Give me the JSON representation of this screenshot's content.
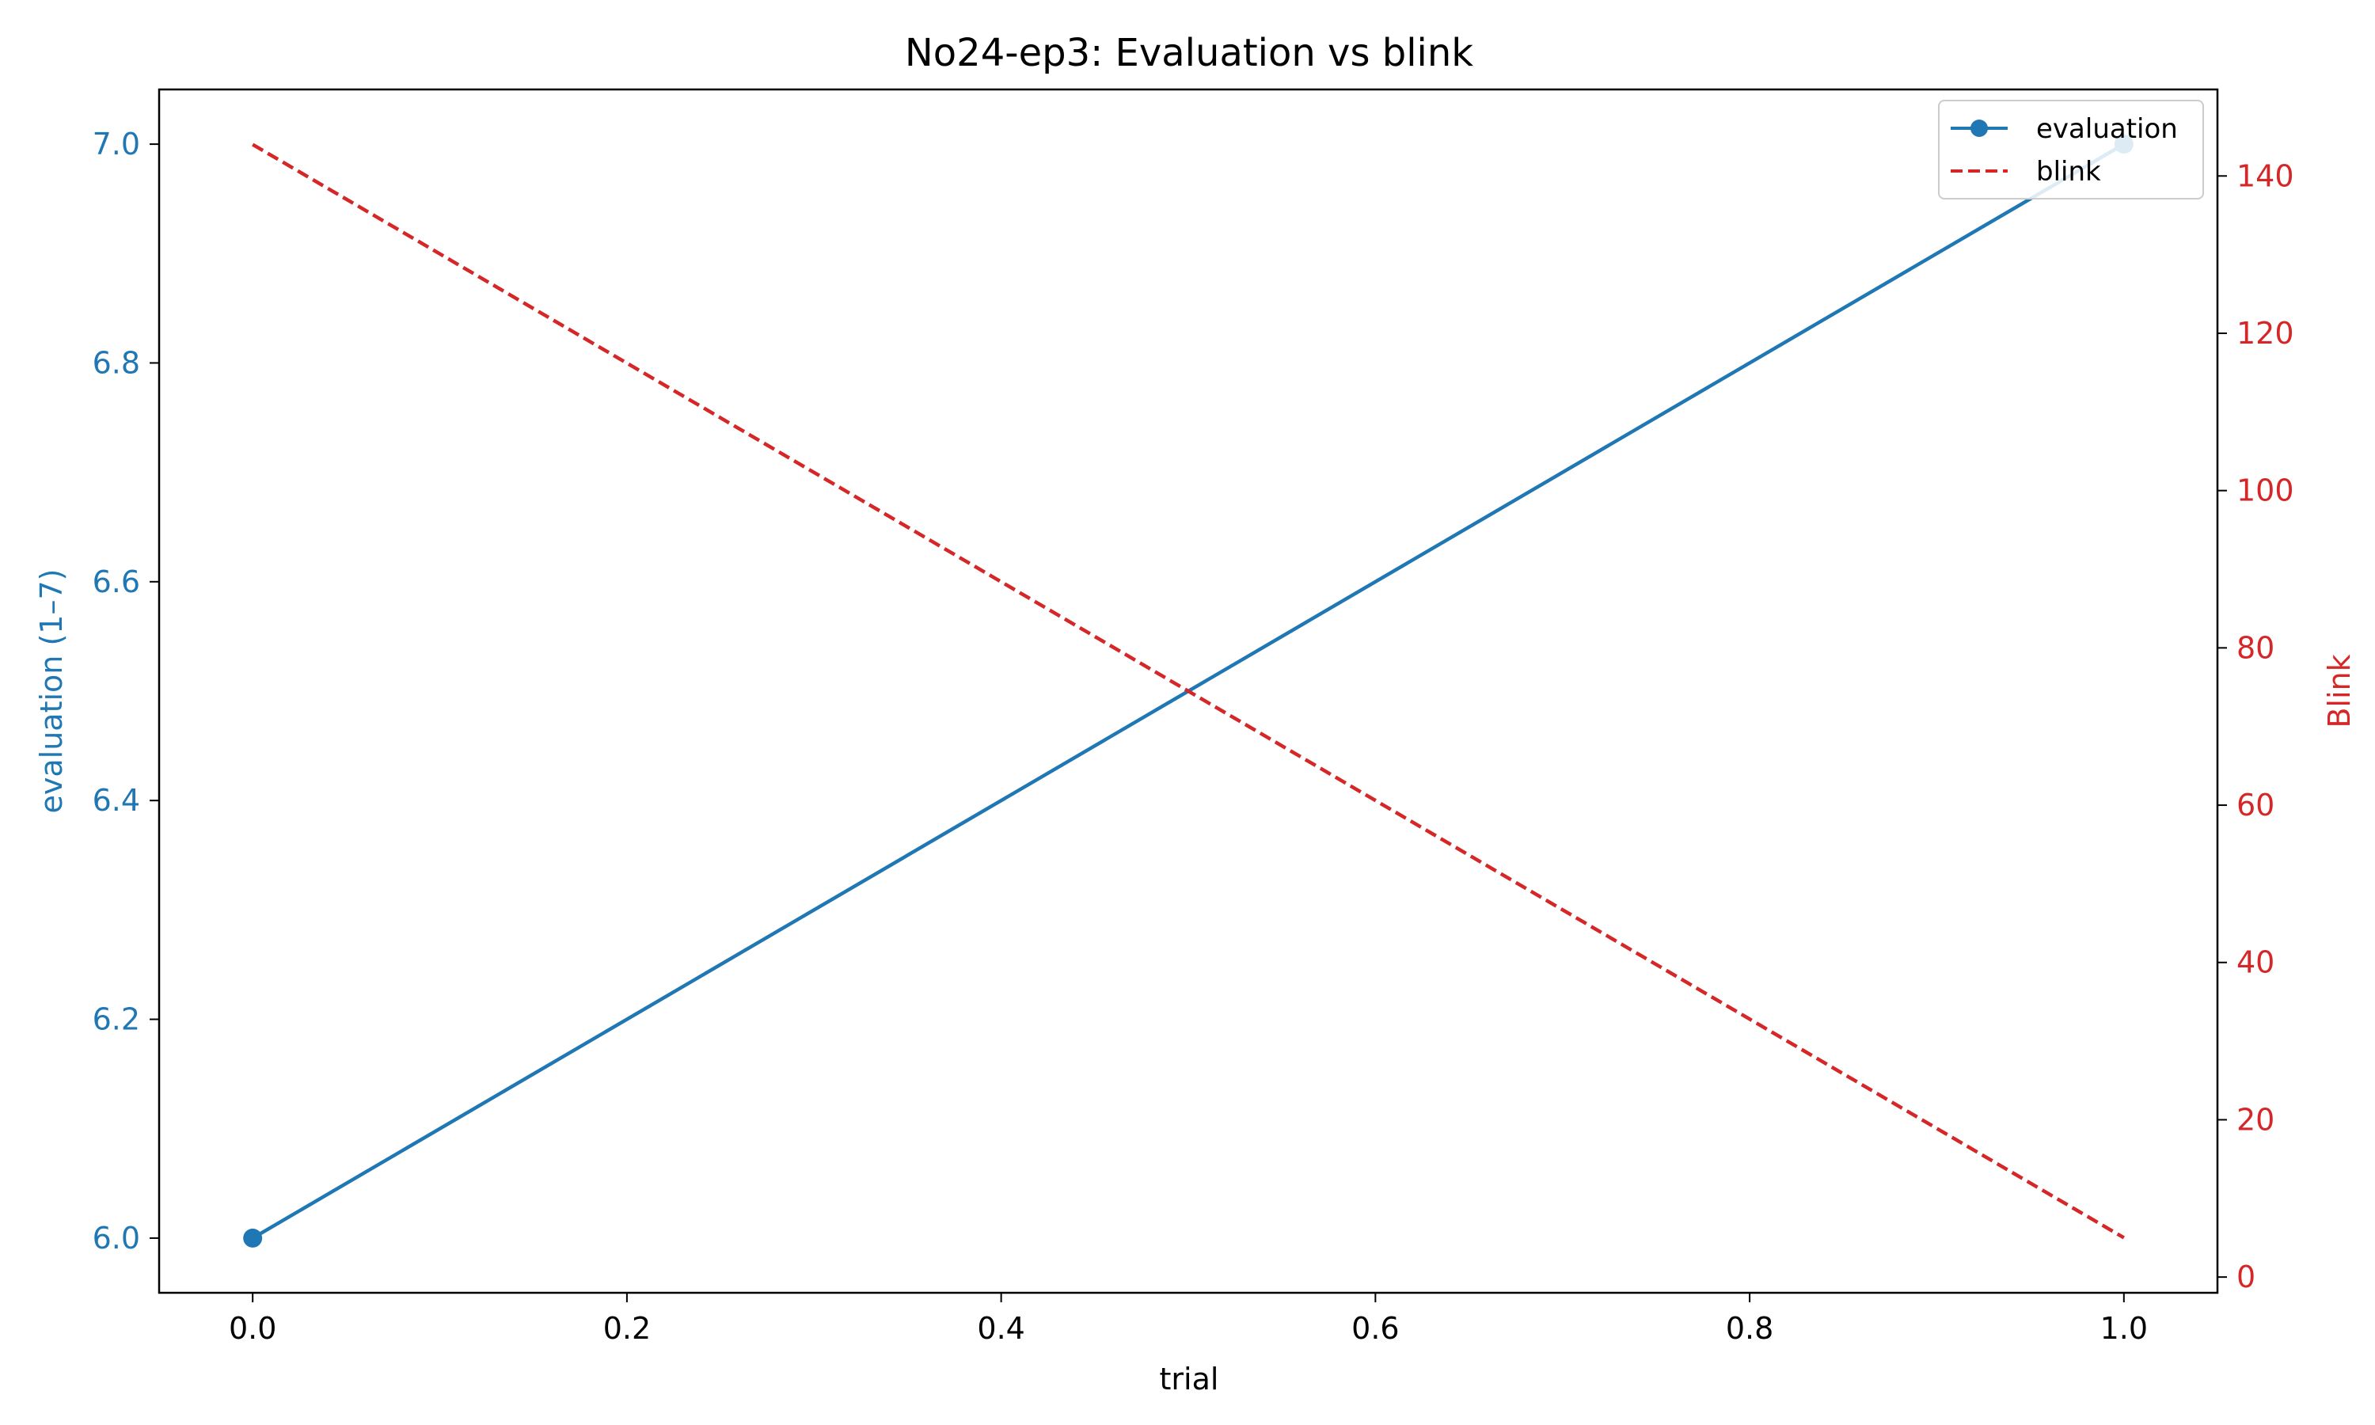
{
  "chart_data": {
    "type": "line",
    "title": "No24-ep3: Evaluation vs blink",
    "xlabel": "trial",
    "ylabel": "evaluation (1–7)",
    "ylabel_right": "Blink",
    "xlim": [
      -0.05,
      1.05
    ],
    "ylim": [
      5.95,
      7.05
    ],
    "ylim_right": [
      -2,
      151
    ],
    "x_ticks": [
      "0.0",
      "0.2",
      "0.4",
      "0.6",
      "0.8",
      "1.0"
    ],
    "y_ticks": [
      "6.0",
      "6.2",
      "6.4",
      "6.6",
      "6.8",
      "7.0"
    ],
    "y_ticks_right": [
      "0",
      "20",
      "40",
      "60",
      "80",
      "100",
      "120",
      "140"
    ],
    "grid": false,
    "legend_position": "top-right",
    "series": [
      {
        "name": "evaluation",
        "axis": "left",
        "x": [
          0.0,
          1.0
        ],
        "values": [
          6.0,
          7.0
        ],
        "color": "#1f77b4",
        "line_style": "solid",
        "marker": "circle"
      },
      {
        "name": "blink",
        "axis": "right",
        "x": [
          0.0,
          1.0
        ],
        "values": [
          144,
          5
        ],
        "color": "#d62728",
        "line_style": "dashed",
        "marker": "none"
      }
    ]
  }
}
